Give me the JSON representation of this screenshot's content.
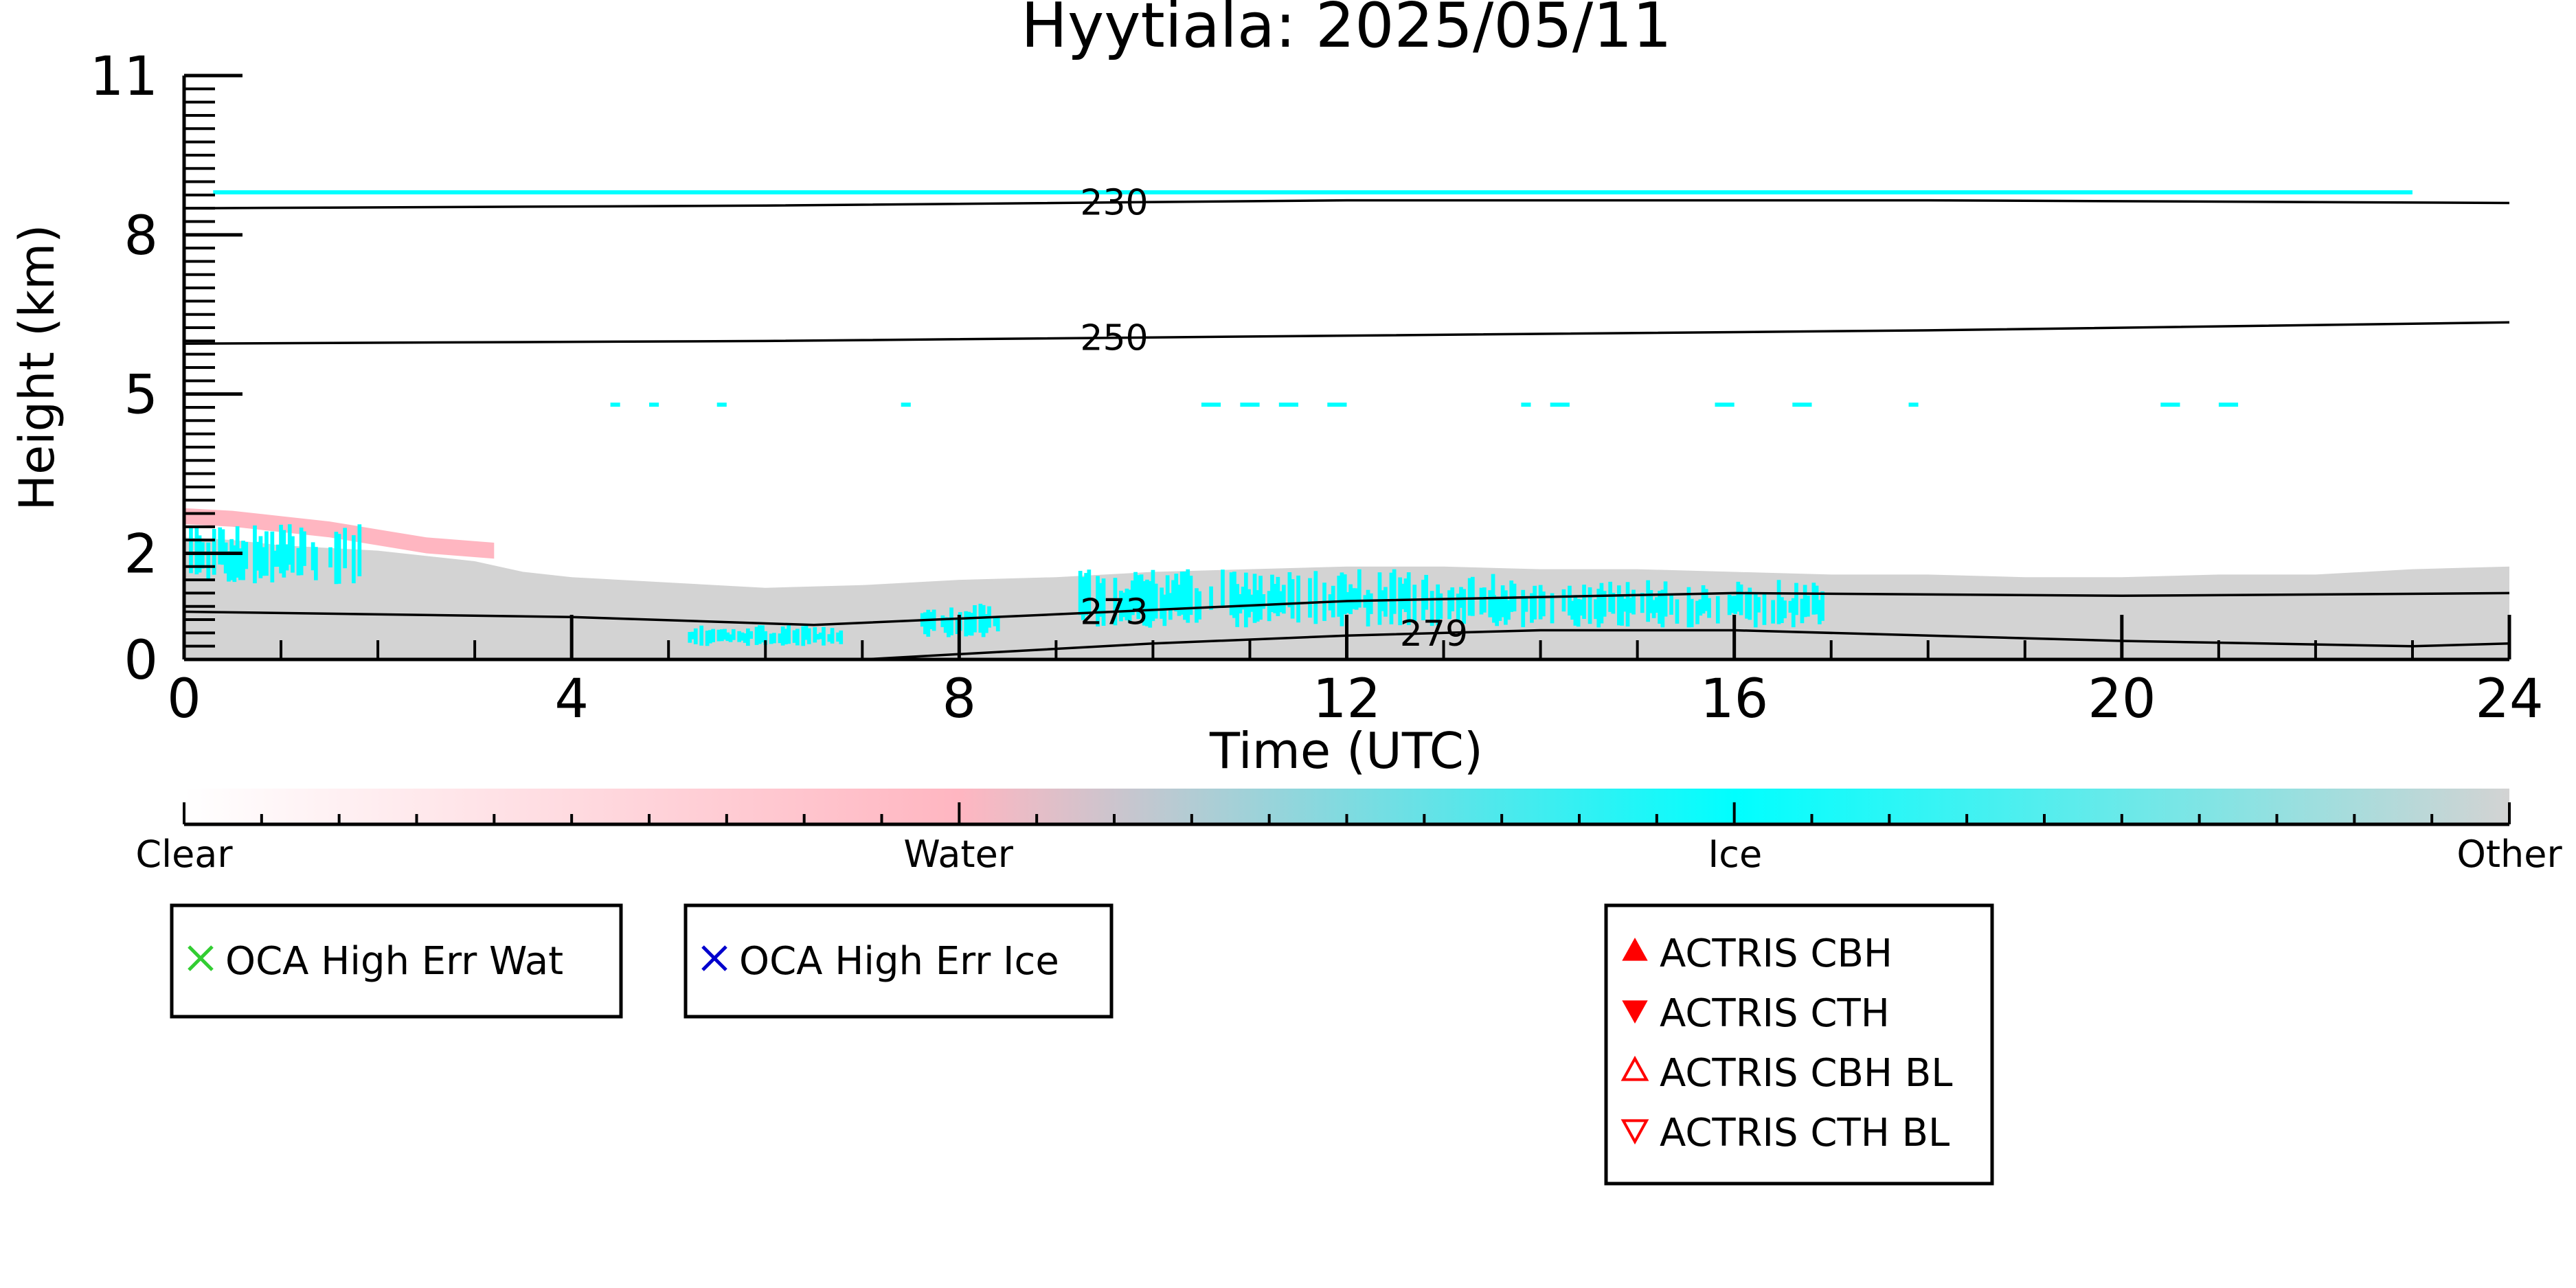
{
  "chart_data": {
    "type": "heatmap",
    "title": "Hyytiala: 2025/05/11",
    "xlabel": "Time (UTC)",
    "ylabel": "Height (km)",
    "xlim": [
      0,
      24
    ],
    "ylim": [
      0,
      11
    ],
    "x_ticks": [
      0,
      4,
      8,
      12,
      16,
      20,
      24
    ],
    "x_tick_labels": [
      "0",
      "4",
      "8",
      "12",
      "16",
      "20",
      "24"
    ],
    "y_ticks": [
      0,
      2,
      5,
      8,
      11
    ],
    "y_tick_labels": [
      "0",
      "2",
      "5",
      "8",
      "11"
    ],
    "colorbar": {
      "labels": [
        "Clear",
        "Water",
        "Ice",
        "Other"
      ],
      "positions": [
        0,
        0.333,
        0.667,
        1
      ],
      "colors": [
        "#ffffff",
        "#ffb6c1",
        "#00ffff",
        "#d3d3d3"
      ]
    },
    "classes": {
      "other": {
        "color": "#d3d3d3"
      },
      "water": {
        "color": "#ffb6c1"
      },
      "ice": {
        "color": "#00ffff"
      }
    },
    "other_top_profile": [
      [
        0,
        2.3
      ],
      [
        0.5,
        2.25
      ],
      [
        1,
        2.15
      ],
      [
        2,
        2.05
      ],
      [
        3,
        1.85
      ],
      [
        3.5,
        1.65
      ],
      [
        4,
        1.55
      ],
      [
        5,
        1.45
      ],
      [
        6,
        1.35
      ],
      [
        7,
        1.4
      ],
      [
        8,
        1.5
      ],
      [
        9,
        1.55
      ],
      [
        10,
        1.65
      ],
      [
        11,
        1.7
      ],
      [
        12,
        1.75
      ],
      [
        13,
        1.75
      ],
      [
        14,
        1.7
      ],
      [
        15,
        1.7
      ],
      [
        16,
        1.65
      ],
      [
        17,
        1.6
      ],
      [
        18,
        1.6
      ],
      [
        19,
        1.55
      ],
      [
        20,
        1.55
      ],
      [
        21,
        1.6
      ],
      [
        22,
        1.6
      ],
      [
        23,
        1.7
      ],
      [
        24,
        1.75
      ]
    ],
    "water_top_profile": [
      [
        0,
        2.85
      ],
      [
        0.5,
        2.8
      ],
      [
        1,
        2.7
      ],
      [
        1.5,
        2.6
      ],
      [
        2,
        2.45
      ],
      [
        2.5,
        2.3
      ],
      [
        3.2,
        2.2
      ]
    ],
    "ice_regions": [
      {
        "x": [
          0.05,
          1.8
        ],
        "y": [
          1.4,
          2.55
        ]
      },
      {
        "x": [
          5.2,
          6.8
        ],
        "y": [
          0.25,
          0.65
        ]
      },
      {
        "x": [
          7.6,
          8.4
        ],
        "y": [
          0.4,
          1.05
        ]
      },
      {
        "x": [
          9.2,
          13.5
        ],
        "y": [
          0.6,
          1.7
        ]
      },
      {
        "x": [
          13.5,
          16.9
        ],
        "y": [
          0.6,
          1.5
        ]
      }
    ],
    "high_ice_layers": [
      {
        "y": 8.8,
        "x_segments": [
          [
            0.3,
            23.0
          ]
        ]
      },
      {
        "y": 4.8,
        "x_segments": [
          [
            4.4,
            4.5
          ],
          [
            4.8,
            4.9
          ],
          [
            5.5,
            5.6
          ],
          [
            7.4,
            7.5
          ],
          [
            10.5,
            10.7
          ],
          [
            10.9,
            11.1
          ],
          [
            11.3,
            11.5
          ],
          [
            11.8,
            12.0
          ],
          [
            13.8,
            13.9
          ],
          [
            14.1,
            14.3
          ],
          [
            15.8,
            16.0
          ],
          [
            16.6,
            16.8
          ],
          [
            17.8,
            17.9
          ],
          [
            20.4,
            20.6
          ],
          [
            21.0,
            21.2
          ]
        ]
      }
    ],
    "isotherms": [
      {
        "label": "230",
        "label_at": 9.6,
        "points": [
          [
            0,
            8.5
          ],
          [
            6,
            8.55
          ],
          [
            12,
            8.65
          ],
          [
            18,
            8.65
          ],
          [
            24,
            8.6
          ]
        ]
      },
      {
        "label": "250",
        "label_at": 9.6,
        "points": [
          [
            0,
            5.95
          ],
          [
            6,
            6.0
          ],
          [
            12,
            6.1
          ],
          [
            18,
            6.2
          ],
          [
            24,
            6.35
          ]
        ]
      },
      {
        "label": "273",
        "label_at": 9.6,
        "points": [
          [
            0,
            0.9
          ],
          [
            4,
            0.8
          ],
          [
            6.5,
            0.65
          ],
          [
            9,
            0.85
          ],
          [
            12,
            1.1
          ],
          [
            16,
            1.25
          ],
          [
            20,
            1.2
          ],
          [
            24,
            1.25
          ]
        ]
      },
      {
        "label": "279",
        "label_at": 12.9,
        "points": [
          [
            7,
            0
          ],
          [
            10,
            0.3
          ],
          [
            12,
            0.45
          ],
          [
            14,
            0.55
          ],
          [
            16,
            0.55
          ],
          [
            20,
            0.35
          ],
          [
            23,
            0.25
          ],
          [
            24,
            0.3
          ]
        ]
      }
    ],
    "legends": [
      {
        "items": [
          {
            "marker": "x",
            "color": "#32cd32",
            "label": "OCA High Err Wat"
          }
        ]
      },
      {
        "items": [
          {
            "marker": "x",
            "color": "#0000cd",
            "label": "OCA High Err Ice"
          }
        ]
      },
      {
        "items": [
          {
            "marker": "triangle-up-filled",
            "color": "#ff0000",
            "label": "ACTRIS CBH"
          },
          {
            "marker": "triangle-down-filled",
            "color": "#ff0000",
            "label": "ACTRIS CTH"
          },
          {
            "marker": "triangle-up-open",
            "color": "#ff0000",
            "label": "ACTRIS CBH BL"
          },
          {
            "marker": "triangle-down-open",
            "color": "#ff0000",
            "label": "ACTRIS CTH BL"
          }
        ]
      }
    ]
  }
}
